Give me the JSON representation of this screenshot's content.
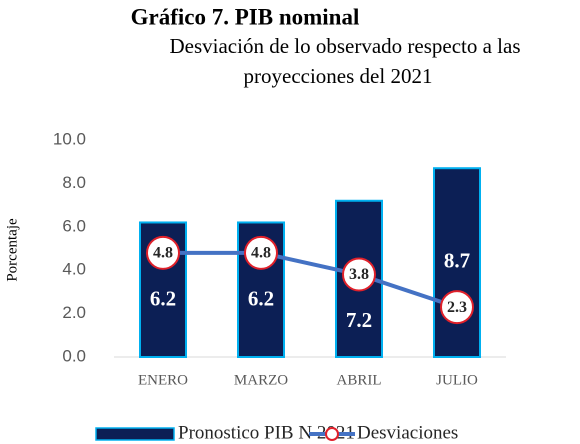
{
  "chart_data": {
    "type": "bar_line",
    "title": "Gráfico 7. PIB nominal",
    "subtitle": [
      "Desviación de lo observado respecto a las",
      "proyecciones del 2021"
    ],
    "ylabel": "Porcentaje",
    "categories": [
      "ENERO",
      "MARZO",
      "ABRIL",
      "JULIO"
    ],
    "series": [
      {
        "name": "Pronostico PIB N 2021",
        "type": "bar",
        "color": "#0c1f55",
        "edge_color": "#00b0f0",
        "values": [
          6.2,
          6.2,
          7.2,
          8.7
        ]
      },
      {
        "name": "Desviaciones",
        "type": "line",
        "color": "#4472c4",
        "marker_edge_color": "#e0202a",
        "values": [
          4.8,
          4.8,
          3.8,
          2.3
        ]
      }
    ],
    "ylim": [
      0,
      10
    ],
    "yticks": [
      {
        "value": 0,
        "label": "0.0"
      },
      {
        "value": 2,
        "label": "2.0"
      },
      {
        "value": 4,
        "label": "4.0"
      },
      {
        "value": 6,
        "label": "6.0"
      },
      {
        "value": 8,
        "label": "8.0"
      },
      {
        "value": 10,
        "label": "10.0"
      }
    ],
    "grid": false,
    "legend": "bottom"
  }
}
